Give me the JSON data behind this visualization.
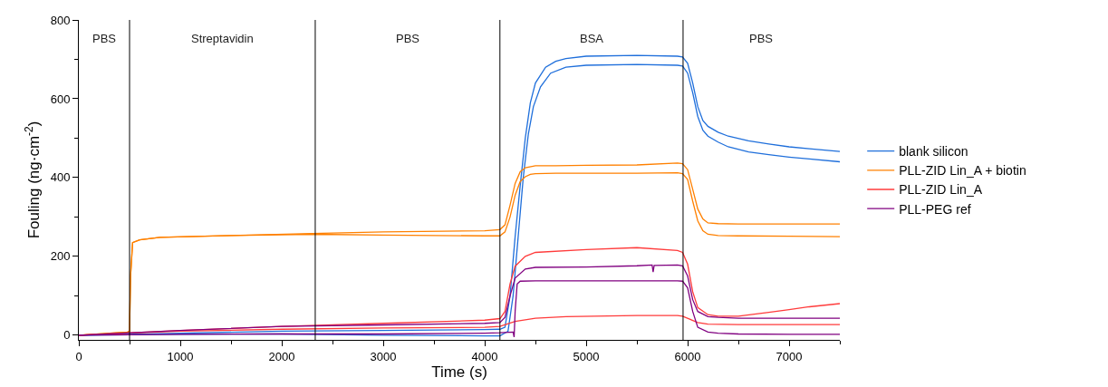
{
  "chart_data": {
    "type": "line",
    "xlabel": "Time (s)",
    "ylabel": "Fouling (ng·cm$^{-2}$)",
    "xlim": [
      0,
      7500
    ],
    "ylim": [
      -12,
      800
    ],
    "xticks": [
      0,
      {
        "value": 500,
        "label": null
      },
      1000,
      {
        "value": 1500,
        "label": null
      },
      2000,
      {
        "value": 2500,
        "label": null
      },
      3000,
      {
        "value": 3500,
        "label": null
      },
      4000,
      {
        "value": 4500,
        "label": null
      },
      5000,
      {
        "value": 5500,
        "label": null
      },
      6000,
      {
        "value": 6500,
        "label": null
      },
      7000,
      {
        "value": 7500,
        "label": null
      }
    ],
    "yticks": [
      0,
      {
        "value": 100,
        "label": null
      },
      200,
      {
        "value": 300,
        "label": null
      },
      400,
      {
        "value": 500,
        "label": null
      },
      600,
      {
        "value": 700,
        "label": null
      },
      800
    ],
    "grid": false,
    "legend": "right",
    "marker": "none",
    "line_style": "solid",
    "ref_lines": [
      {
        "axis": "x",
        "value": 500,
        "color": "#000000"
      },
      {
        "axis": "x",
        "value": 2330,
        "color": "#000000"
      },
      {
        "axis": "x",
        "value": 4150,
        "color": "#000000"
      },
      {
        "axis": "x",
        "value": 5955,
        "color": "#000000"
      }
    ],
    "annotations": [
      "PBS",
      "Streptavidin",
      "PBS",
      "BSA",
      "PBS"
    ],
    "series": [
      {
        "name": "blank silicon",
        "color": "#1f6fdb",
        "x": [
          0,
          1000,
          2000,
          3000,
          4000,
          4150,
          4200,
          4250,
          4300,
          4350,
          4400,
          4450,
          4500,
          4600,
          4700,
          4800,
          5000,
          5500,
          5900,
          5950,
          6000,
          6050,
          6100,
          6150,
          6200,
          6300,
          6400,
          6600,
          6800,
          7000,
          7200,
          7500
        ],
        "values": [
          0,
          5,
          10,
          12,
          14,
          15,
          20,
          100,
          250,
          380,
          500,
          590,
          640,
          680,
          695,
          702,
          708,
          710,
          708,
          706,
          690,
          640,
          580,
          545,
          530,
          515,
          505,
          493,
          485,
          478,
          473,
          466
        ]
      },
      {
        "color": "#1f6fdb",
        "x": [
          0,
          1000,
          2000,
          3000,
          4000,
          4150,
          4230,
          4280,
          4330,
          4380,
          4430,
          4480,
          4550,
          4650,
          4800,
          5000,
          5500,
          5900,
          5950,
          6000,
          6050,
          6100,
          6150,
          6200,
          6300,
          6400,
          6600,
          6800,
          7000,
          7200,
          7500
        ],
        "values": [
          0,
          2,
          3,
          0,
          -2,
          -2,
          10,
          100,
          250,
          400,
          510,
          580,
          630,
          665,
          680,
          685,
          687,
          685,
          683,
          665,
          615,
          555,
          520,
          505,
          490,
          478,
          465,
          458,
          452,
          447,
          440
        ]
      },
      {
        "name": "PLL-ZID Lin_A + biotin",
        "color": "#ff8000",
        "x": [
          0,
          480,
          500,
          510,
          530,
          600,
          800,
          1500,
          2300,
          3000,
          4000,
          4150,
          4200,
          4250,
          4300,
          4350,
          4400,
          4500,
          4700,
          5000,
          5500,
          5900,
          5950,
          6000,
          6050,
          6100,
          6150,
          6200,
          6300,
          6500,
          7000,
          7500
        ],
        "values": [
          0,
          8,
          10,
          150,
          235,
          242,
          248,
          253,
          258,
          262,
          265,
          268,
          280,
          330,
          385,
          415,
          425,
          430,
          430,
          431,
          432,
          437,
          435,
          420,
          370,
          320,
          295,
          285,
          283,
          282,
          282,
          282
        ]
      },
      {
        "color": "#ff8000",
        "x": [
          0,
          480,
          500,
          510,
          530,
          600,
          800,
          1500,
          2300,
          3000,
          4000,
          4150,
          4200,
          4250,
          4300,
          4350,
          4400,
          4450,
          4500,
          4700,
          5000,
          5500,
          5900,
          5950,
          6000,
          6050,
          6100,
          6150,
          6200,
          6300,
          6500,
          7000,
          7500
        ],
        "values": [
          0,
          8,
          10,
          150,
          235,
          242,
          248,
          253,
          256,
          254,
          252,
          252,
          262,
          300,
          355,
          390,
          402,
          408,
          410,
          411,
          411,
          411,
          412,
          410,
          395,
          340,
          290,
          265,
          256,
          253,
          252,
          251,
          250
        ]
      },
      {
        "name": "PLL-ZID Lin_A",
        "color": "#ff3b3b",
        "x": [
          0,
          1000,
          2000,
          3000,
          4000,
          4150,
          4200,
          4250,
          4300,
          4400,
          4500,
          5000,
          5500,
          5900,
          5950,
          6000,
          6050,
          6100,
          6200,
          6300,
          6500,
          6800,
          7000,
          7200,
          7500
        ],
        "values": [
          0,
          12,
          22,
          30,
          38,
          42,
          60,
          130,
          175,
          200,
          210,
          217,
          222,
          215,
          210,
          180,
          110,
          70,
          52,
          48,
          48,
          58,
          65,
          72,
          80
        ]
      },
      {
        "color": "#ff3b3b",
        "x": [
          0,
          1000,
          2000,
          3000,
          4000,
          4150,
          4300,
          4500,
          4800,
          5500,
          5900,
          5950,
          6100,
          6200,
          6500,
          7000,
          7500
        ],
        "values": [
          0,
          10,
          15,
          18,
          20,
          22,
          35,
          43,
          47,
          50,
          50,
          48,
          32,
          28,
          27,
          27,
          27
        ]
      },
      {
        "name": "PLL-PEG ref",
        "color": "#800080",
        "x": [
          0,
          1000,
          2000,
          3000,
          4000,
          4150,
          4200,
          4250,
          4300,
          4400,
          4500,
          5000,
          5500,
          5650,
          5660,
          5670,
          5900,
          5950,
          6000,
          6050,
          6100,
          6200,
          6300,
          6500,
          7000,
          7500
        ],
        "values": [
          0,
          12,
          22,
          26,
          30,
          32,
          45,
          100,
          145,
          168,
          172,
          173,
          176,
          178,
          160,
          177,
          178,
          176,
          150,
          90,
          60,
          47,
          45,
          43,
          43,
          43
        ]
      },
      {
        "color": "#800080",
        "x": [
          0,
          1000,
          2000,
          3000,
          4000,
          4150,
          4280,
          4290,
          4300,
          4320,
          4350,
          4500,
          5000,
          5500,
          5900,
          5950,
          6000,
          6050,
          6100,
          6200,
          6300,
          6500,
          7000,
          7500
        ],
        "values": [
          0,
          2,
          3,
          3,
          5,
          6,
          8,
          -5,
          60,
          130,
          137,
          138,
          138,
          138,
          138,
          137,
          120,
          60,
          20,
          8,
          5,
          3,
          2,
          2
        ]
      }
    ]
  }
}
